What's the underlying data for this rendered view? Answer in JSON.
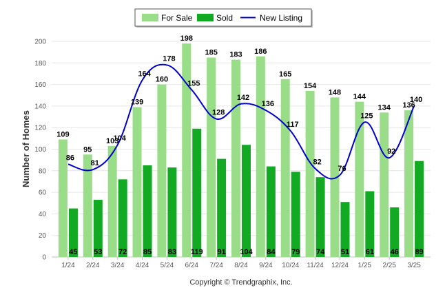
{
  "chart_data": {
    "type": "bar",
    "title": "",
    "xlabel": "",
    "ylabel": "Number of Homes",
    "ylim": [
      0,
      200
    ],
    "yticks": [
      0,
      20,
      40,
      60,
      80,
      100,
      120,
      140,
      160,
      180,
      200
    ],
    "categories": [
      "1/24",
      "2/24",
      "3/24",
      "4/24",
      "5/24",
      "6/24",
      "7/24",
      "8/24",
      "9/24",
      "10/24",
      "11/24",
      "12/24",
      "1/25",
      "2/25",
      "3/25"
    ],
    "series": [
      {
        "name": "For Sale",
        "type": "bar",
        "color": "#99dd88",
        "values": [
          109,
          95,
          103,
          139,
          160,
          198,
          185,
          183,
          186,
          165,
          154,
          148,
          144,
          134,
          136
        ]
      },
      {
        "name": "Sold",
        "type": "bar",
        "color": "#11aa22",
        "values": [
          45,
          53,
          72,
          85,
          83,
          119,
          91,
          104,
          84,
          79,
          74,
          51,
          61,
          46,
          89
        ]
      },
      {
        "name": "New Listing",
        "type": "line",
        "color": "#0000cc",
        "values": [
          86,
          81,
          104,
          164,
          178,
          155,
          128,
          142,
          136,
          117,
          82,
          76,
          125,
          92,
          140
        ]
      }
    ],
    "grid": true,
    "legend_position": "top-center"
  },
  "footer": {
    "copyright": "Copyright © Trendgraphix, Inc."
  }
}
